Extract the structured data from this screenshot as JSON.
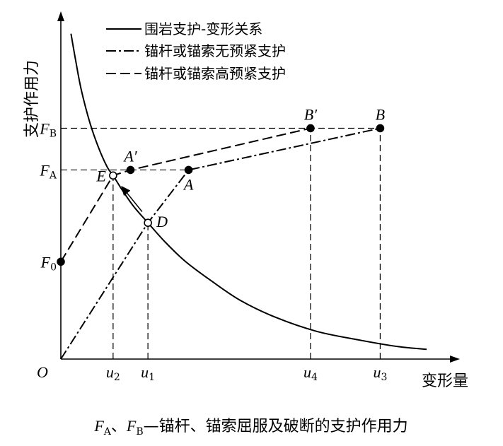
{
  "chart_data": {
    "type": "line",
    "title": "",
    "xlabel": "变形量",
    "ylabel": "支护作用力",
    "origin_label": "O",
    "caption": {
      "fa": "F",
      "fa_sub": "A",
      "sep1": "、",
      "fb": "F",
      "fb_sub": "B",
      "rest": "—锚杆、锚索屈服及破断的支护作用力"
    },
    "legend": {
      "placement": "top",
      "items": [
        {
          "label": "围岩支护-变形关系",
          "style": "solid"
        },
        {
          "label": "锚杆或锚索无预紧支护",
          "style": "dash-dot"
        },
        {
          "label": "锚杆或锚索高预紧支护",
          "style": "dash"
        }
      ]
    },
    "x_ticks": [
      {
        "id": "u2",
        "main": "u",
        "sub": "2",
        "value": 0.18
      },
      {
        "id": "u1",
        "main": "u",
        "sub": "1",
        "value": 0.3
      },
      {
        "id": "u4",
        "main": "u",
        "sub": "4",
        "value": 0.86
      },
      {
        "id": "u3",
        "main": "u",
        "sub": "3",
        "value": 1.1
      }
    ],
    "y_ticks": [
      {
        "id": "FB",
        "main": "F",
        "sub": "B",
        "value": 0.83
      },
      {
        "id": "FA",
        "main": "F",
        "sub": "A",
        "value": 0.68
      },
      {
        "id": "F0",
        "main": "F",
        "sub": "0",
        "value": 0.35
      }
    ],
    "xlim": [
      0,
      1.35
    ],
    "ylim": [
      0,
      1.22
    ],
    "series": [
      {
        "id": "rock",
        "name": "围岩支护-变形关系",
        "style": "solid",
        "x": [
          0.035,
          0.05,
          0.07,
          0.1,
          0.13,
          0.16,
          0.18,
          0.21,
          0.25,
          0.3,
          0.36,
          0.43,
          0.52,
          0.62,
          0.74,
          0.88,
          1.02,
          1.16,
          1.26
        ],
        "y": [
          1.17,
          1.08,
          0.97,
          0.85,
          0.76,
          0.69,
          0.66,
          0.61,
          0.55,
          0.49,
          0.42,
          0.35,
          0.28,
          0.21,
          0.15,
          0.1,
          0.07,
          0.045,
          0.035
        ]
      },
      {
        "id": "no_pretension",
        "name": "锚杆或锚索无预紧支护",
        "style": "dash-dot",
        "x": [
          0.0,
          0.3,
          0.44,
          1.1
        ],
        "y": [
          0.0,
          0.49,
          0.68,
          0.83
        ]
      },
      {
        "id": "high_pretension",
        "name": "锚杆或锚索高预紧支护",
        "style": "dash",
        "x": [
          0.0,
          0.18,
          0.24,
          0.86
        ],
        "y": [
          0.35,
          0.66,
          0.68,
          0.83
        ]
      }
    ],
    "points": [
      {
        "label": "A",
        "prime": "",
        "x": 0.44,
        "y": 0.68,
        "filled": true,
        "label_pos": "below"
      },
      {
        "label": "A",
        "prime": "′",
        "x": 0.24,
        "y": 0.68,
        "filled": true,
        "label_pos": "above"
      },
      {
        "label": "B",
        "prime": "",
        "x": 1.1,
        "y": 0.83,
        "filled": true,
        "label_pos": "above"
      },
      {
        "label": "B",
        "prime": "′",
        "x": 0.86,
        "y": 0.83,
        "filled": true,
        "label_pos": "above"
      },
      {
        "label": "E",
        "prime": "",
        "x": 0.18,
        "y": 0.66,
        "filled": false,
        "label_pos": "left"
      },
      {
        "label": "D",
        "prime": "",
        "x": 0.3,
        "y": 0.49,
        "filled": false,
        "label_pos": "right"
      },
      {
        "label": "",
        "prime": "",
        "x": 0.0,
        "y": 0.35,
        "filled": true,
        "label_pos": "none"
      }
    ],
    "arrow": {
      "from": [
        0.28,
        0.53
      ],
      "to": [
        0.21,
        0.62
      ]
    },
    "grid": false
  }
}
